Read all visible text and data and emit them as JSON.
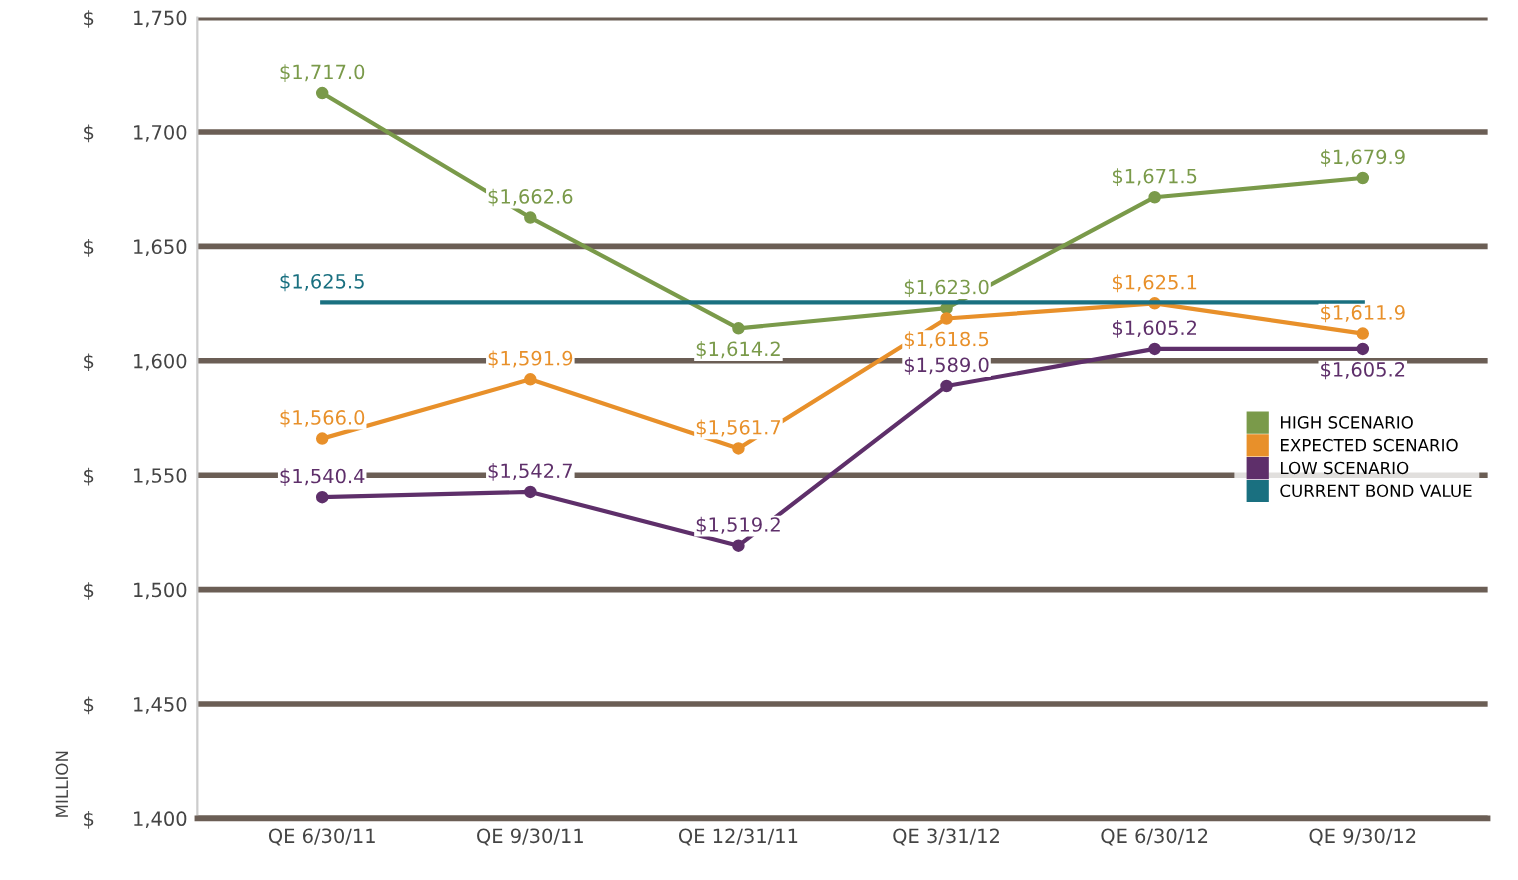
{
  "chart_data": {
    "type": "line",
    "ylabel": "MILLION",
    "categories": [
      "QE 6/30/11",
      "QE 9/30/11",
      "QE 12/31/11",
      "QE 3/31/12",
      "QE 6/30/12",
      "QE 9/30/12"
    ],
    "series": [
      {
        "name": "HIGH SCENARIO",
        "color": "#7a9a4a",
        "marker": "circle",
        "values": [
          1717.0,
          1662.6,
          1614.2,
          1623.0,
          1671.5,
          1679.9
        ],
        "value_labels": [
          "$1,717.0",
          "$1,662.6",
          "$1,614.2",
          "$1,623.0",
          "$1,671.5",
          "$1,679.9"
        ]
      },
      {
        "name": "EXPECTED SCENARIO",
        "color": "#e8902a",
        "marker": "circle",
        "values": [
          1566.0,
          1591.9,
          1561.7,
          1618.5,
          1625.1,
          1611.9
        ],
        "value_labels": [
          "$1,566.0",
          "$1,591.9",
          "$1,561.7",
          "$1,618.5",
          "$1,625.1",
          "$1,611.9"
        ]
      },
      {
        "name": "LOW SCENARIO",
        "color": "#5e2f6a",
        "marker": "circle",
        "values": [
          1540.4,
          1542.7,
          1519.2,
          1589.0,
          1605.2,
          1605.2
        ],
        "value_labels": [
          "$1,540.4",
          "$1,542.7",
          "$1,519.2",
          "$1,589.0",
          "$1,605.2",
          "$1,605.2"
        ]
      },
      {
        "name": "CURRENT BOND VALUE",
        "color": "#1a7080",
        "marker": "none",
        "values": [
          1625.5,
          1625.5,
          1625.5,
          1625.5,
          1625.5,
          1625.5
        ],
        "value_labels": [
          "$1,625.5",
          null,
          null,
          null,
          null,
          null
        ]
      }
    ],
    "ylim": [
      1400,
      1750
    ],
    "yticks": [
      {
        "value": 1400,
        "label": "$      1,400"
      },
      {
        "value": 1450,
        "label": "$      1,450"
      },
      {
        "value": 1500,
        "label": "$      1,500"
      },
      {
        "value": 1550,
        "label": "$      1,550"
      },
      {
        "value": 1600,
        "label": "$      1,600"
      },
      {
        "value": 1650,
        "label": "$      1,650"
      },
      {
        "value": 1700,
        "label": "$      1,700"
      },
      {
        "value": 1750,
        "label": "$      1,750"
      }
    ],
    "grid": "y",
    "legend": "right",
    "line_style": "solid"
  }
}
